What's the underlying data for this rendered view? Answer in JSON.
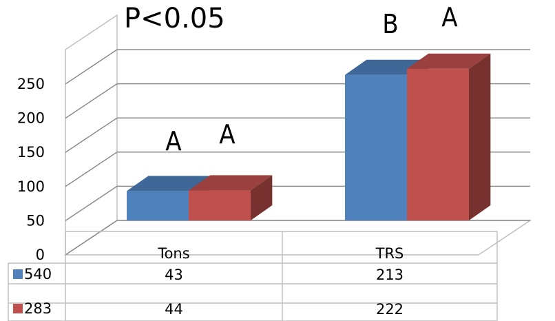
{
  "chart_data": {
    "type": "bar",
    "title": "P<0.05",
    "categories": [
      "Tons",
      "TRS"
    ],
    "series": [
      {
        "name": "540",
        "values": [
          43,
          213
        ],
        "color": "#4f81bd"
      },
      {
        "name": "283",
        "values": [
          44,
          222
        ],
        "color": "#c0504d"
      }
    ],
    "letters": [
      [
        "A",
        "A"
      ],
      [
        "B",
        "A"
      ]
    ],
    "ylim": [
      0,
      250
    ],
    "yticks": [
      "0",
      "50",
      "100",
      "150",
      "200",
      "250"
    ],
    "grid": true,
    "legend": "data-table",
    "style": "3d-clustered-column"
  }
}
